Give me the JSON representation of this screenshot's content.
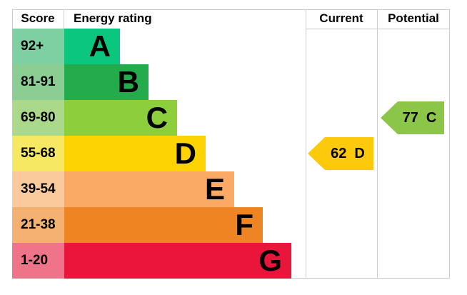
{
  "header": {
    "score": "Score",
    "energy_rating": "Energy rating",
    "current": "Current",
    "potential": "Potential"
  },
  "chart_data": {
    "type": "epc_energy_rating_chart",
    "title": "Energy rating",
    "columns": [
      "Score",
      "Energy rating",
      "Current",
      "Potential"
    ],
    "bands": [
      {
        "score_range": "92+",
        "letter": "A",
        "bar_color": "#0bc77d",
        "score_bg": "#7ecfa1"
      },
      {
        "score_range": "81-91",
        "letter": "B",
        "bar_color": "#24ab4c",
        "score_bg": "#8bcd92"
      },
      {
        "score_range": "69-80",
        "letter": "C",
        "bar_color": "#8cce3c",
        "score_bg": "#aad98b"
      },
      {
        "score_range": "55-68",
        "letter": "D",
        "bar_color": "#fed304",
        "score_bg": "#f6e863"
      },
      {
        "score_range": "39-54",
        "letter": "E",
        "bar_color": "#fbaa65",
        "score_bg": "#fbca9c"
      },
      {
        "score_range": "21-38",
        "letter": "F",
        "bar_color": "#ef8522",
        "score_bg": "#f4b172"
      },
      {
        "score_range": "1-20",
        "letter": "G",
        "bar_color": "#e9153b",
        "score_bg": "#ef748a"
      }
    ],
    "current": {
      "value": "62",
      "letter": "D",
      "arrow_color": "#fcca0a"
    },
    "potential": {
      "value": "77",
      "letter": "C",
      "arrow_color": "#8cc649"
    }
  }
}
